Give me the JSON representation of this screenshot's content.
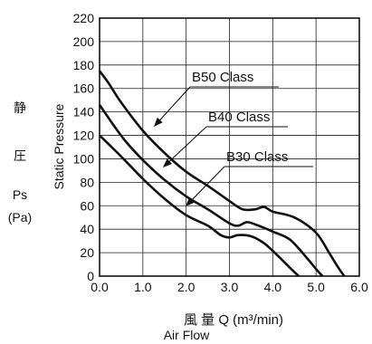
{
  "chart_data": {
    "type": "line",
    "ylabel_vertical": [
      "静",
      "圧",
      "Ps",
      "(Pa)"
    ],
    "ylabel": "Static Pressure",
    "xlabel": "風 量 Q (m³/min)",
    "xlabel_sub": "Air Flow",
    "xlim": [
      0,
      6
    ],
    "ylim": [
      0,
      220
    ],
    "x_ticks": [
      0,
      1,
      2,
      3,
      4,
      5,
      6
    ],
    "x_tick_labels": [
      "0.0",
      "1.0",
      "2.0",
      "3.0",
      "4.0",
      "5.0",
      "6.0"
    ],
    "y_ticks": [
      0,
      20,
      40,
      60,
      80,
      100,
      120,
      140,
      160,
      180,
      200,
      220
    ],
    "grid": true,
    "series": [
      {
        "name": "B50 Class",
        "x": [
          0,
          0.2,
          0.5,
          1.0,
          1.5,
          2.0,
          2.5,
          3.0,
          3.3,
          3.6,
          3.8,
          4.0,
          4.5,
          5.0,
          5.3,
          5.5,
          5.65
        ],
        "y": [
          175,
          165,
          148,
          124,
          105,
          89,
          77,
          64,
          57,
          57,
          59,
          55,
          50,
          37,
          20,
          8,
          0
        ]
      },
      {
        "name": "B40 Class",
        "x": [
          0,
          0.3,
          0.6,
          1.0,
          1.5,
          2.0,
          2.5,
          3.0,
          3.2,
          3.4,
          3.6,
          4.0,
          4.4,
          4.8,
          5.0,
          5.15
        ],
        "y": [
          146,
          130,
          115,
          99,
          82,
          68,
          57,
          45,
          43,
          46,
          44,
          38,
          31,
          15,
          6,
          0
        ]
      },
      {
        "name": "B30 Class",
        "x": [
          0,
          0.5,
          1.0,
          1.5,
          2.0,
          2.5,
          2.8,
          3.0,
          3.2,
          3.5,
          3.8,
          4.1,
          4.4,
          4.6
        ],
        "y": [
          120,
          102,
          83,
          66,
          52,
          43,
          35,
          33,
          35,
          34,
          28,
          18,
          7,
          0
        ]
      }
    ],
    "annotations": [
      {
        "text": "B50 Class",
        "series": "B50 Class"
      },
      {
        "text": "B40 Class",
        "series": "B40 Class"
      },
      {
        "text": "B30 Class",
        "series": "B30 Class"
      }
    ]
  }
}
